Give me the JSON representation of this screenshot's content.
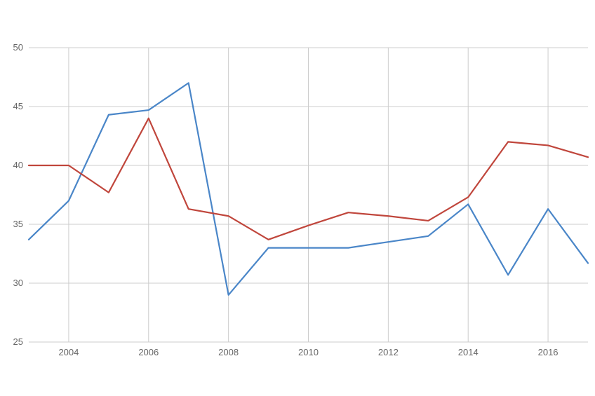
{
  "chart_data": {
    "type": "line",
    "title": "",
    "xlabel": "",
    "ylabel": "",
    "xlim": [
      2003,
      2017
    ],
    "ylim": [
      25,
      50
    ],
    "grid": true,
    "legend": "none",
    "x_ticks": [
      2004,
      2006,
      2008,
      2010,
      2012,
      2014,
      2016
    ],
    "x_tick_labels": [
      "2004",
      "2006",
      "2008",
      "2010",
      "2012",
      "2014",
      "2016"
    ],
    "y_ticks": [
      25,
      30,
      35,
      40,
      45,
      50
    ],
    "y_tick_labels": [
      "25",
      "30",
      "35",
      "40",
      "45",
      "50"
    ],
    "x": [
      2003,
      2004,
      2005,
      2006,
      2007,
      2008,
      2009,
      2010,
      2011,
      2012,
      2013,
      2014,
      2015,
      2016,
      2017
    ],
    "series": [
      {
        "color": "#4a86c8",
        "values": [
          33.7,
          37.0,
          44.3,
          44.7,
          47.0,
          29.0,
          33.0,
          33.0,
          33.0,
          33.5,
          34.0,
          36.7,
          30.7,
          36.3,
          31.7
        ]
      },
      {
        "color": "#c0463c",
        "values": [
          40.0,
          40.0,
          37.7,
          44.0,
          36.3,
          35.7,
          33.7,
          34.9,
          36.0,
          35.7,
          35.3,
          37.3,
          42.0,
          41.7,
          40.7
        ]
      }
    ]
  }
}
